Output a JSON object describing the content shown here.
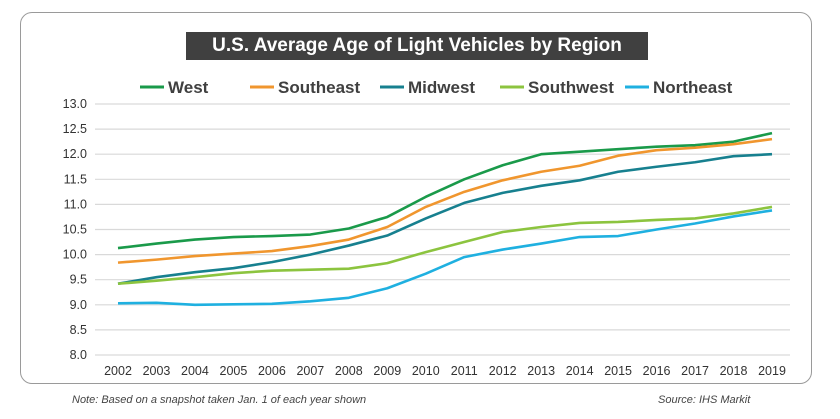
{
  "chart_data": {
    "type": "line",
    "title": "U.S. Average Age of Light Vehicles by Region",
    "xlabel": "",
    "ylabel": "",
    "x": [
      2002,
      2003,
      2004,
      2005,
      2006,
      2007,
      2008,
      2009,
      2010,
      2011,
      2012,
      2013,
      2014,
      2015,
      2016,
      2017,
      2018,
      2019
    ],
    "ylim": [
      8.0,
      13.0
    ],
    "yticks": [
      "13.0",
      "12.5",
      "12.0",
      "11.5",
      "11.0",
      "10.5",
      "10.0",
      "9.5",
      "9.0",
      "8.5",
      "8.0"
    ],
    "grid": true,
    "legend_position": "top",
    "series": [
      {
        "name": "West",
        "color": "#1a9a4a",
        "values": [
          10.13,
          10.22,
          10.3,
          10.35,
          10.37,
          10.4,
          10.52,
          10.75,
          11.15,
          11.5,
          11.78,
          12.0,
          12.05,
          12.1,
          12.15,
          12.18,
          12.25,
          12.42
        ]
      },
      {
        "name": "Southeast",
        "color": "#f0962e",
        "values": [
          9.84,
          9.9,
          9.97,
          10.02,
          10.07,
          10.17,
          10.3,
          10.55,
          10.95,
          11.25,
          11.48,
          11.65,
          11.77,
          11.97,
          12.08,
          12.13,
          12.2,
          12.3
        ]
      },
      {
        "name": "Midwest",
        "color": "#17808f",
        "values": [
          9.42,
          9.55,
          9.65,
          9.73,
          9.85,
          10.0,
          10.18,
          10.38,
          10.72,
          11.03,
          11.23,
          11.37,
          11.48,
          11.65,
          11.75,
          11.84,
          11.96,
          12.0
        ]
      },
      {
        "name": "Southwest",
        "color": "#8cc43f",
        "values": [
          9.42,
          9.48,
          9.55,
          9.63,
          9.68,
          9.7,
          9.72,
          9.83,
          10.05,
          10.25,
          10.45,
          10.55,
          10.63,
          10.65,
          10.69,
          10.72,
          10.82,
          10.95
        ]
      },
      {
        "name": "Northeast",
        "color": "#1fb0e0",
        "values": [
          9.03,
          9.04,
          9.0,
          9.01,
          9.02,
          9.07,
          9.14,
          9.33,
          9.62,
          9.95,
          10.1,
          10.22,
          10.35,
          10.37,
          10.5,
          10.62,
          10.76,
          10.88
        ]
      }
    ]
  },
  "footer": {
    "note": "Note: Based on a snapshot taken Jan. 1 of each year shown",
    "source": "Source: IHS Markit"
  }
}
